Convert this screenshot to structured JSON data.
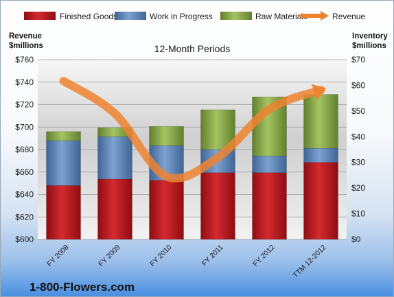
{
  "chart_data": {
    "type": "bar",
    "stacked": true,
    "title": "12-Month Periods",
    "categories": [
      "FY 2008",
      "FY 2009",
      "FY 2010",
      "FY 2011",
      "FY 2012",
      "TTM 12-2012"
    ],
    "series": [
      {
        "name": "Finished Goods",
        "axis": "right",
        "color": "#c0141c",
        "values": [
          21,
          23.5,
          23,
          26,
          26,
          30
        ]
      },
      {
        "name": "Work in Progress",
        "axis": "right",
        "color": "#5b86be",
        "values": [
          17.5,
          16.5,
          13.5,
          9,
          6.5,
          5.5
        ]
      },
      {
        "name": "Raw Materials",
        "axis": "right",
        "color": "#8aab47",
        "values": [
          3.5,
          3.5,
          7.5,
          15.5,
          23,
          21
        ]
      },
      {
        "name": "Revenue",
        "axis": "left",
        "type": "line",
        "color": "#ee8230",
        "values": [
          741,
          712,
          656,
          673,
          716,
          733
        ]
      }
    ],
    "y_left": {
      "label_line1": "Revenue",
      "label_line2": "$millions",
      "range": [
        600,
        760
      ],
      "ticks": [
        "$600",
        "$620",
        "$640",
        "$660",
        "$680",
        "$700",
        "$720",
        "$740",
        "$760"
      ]
    },
    "y_right": {
      "label_line1": "Inventory",
      "label_line2": "$millions",
      "range": [
        0,
        70
      ],
      "ticks": [
        "$0",
        "$10",
        "$20",
        "$30",
        "$40",
        "$50",
        "$60",
        "$70"
      ]
    },
    "legend_position": "top",
    "grid": true
  },
  "brand": "1-800-Flowers.com"
}
